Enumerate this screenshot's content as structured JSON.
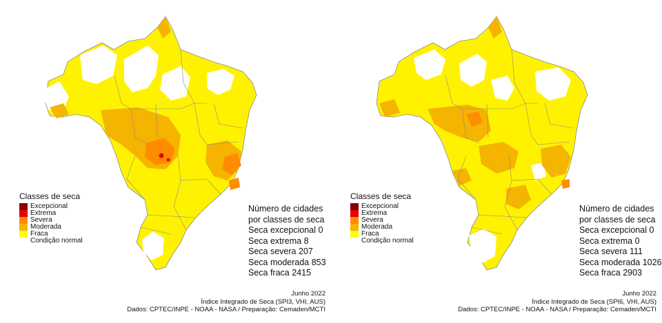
{
  "panels": [
    {
      "legend": {
        "title": "Classes de seca",
        "items": [
          {
            "label": "Excepcional",
            "color": "#8b0000"
          },
          {
            "label": "Extrema",
            "color": "#e60000"
          },
          {
            "label": "Severa",
            "color": "#ff8c00"
          },
          {
            "label": "Moderada",
            "color": "#f5b400"
          },
          {
            "label": "Fraca",
            "color": "#ffff00"
          },
          {
            "label": "Condição normal",
            "color": "#ffffff"
          }
        ]
      },
      "stats": {
        "title_line1": "Número de cidades",
        "title_line2": "por classes de seca",
        "excepcional": "Seca excepcional 0",
        "extrema": "Seca extrema  8",
        "severa": "Seca severa  207",
        "moderada": "Seca moderada 853",
        "fraca": "Seca fraca  2415"
      },
      "credits": {
        "date": "Junho 2022",
        "index": "Índice Integrado de Seca (SPI3, VHI, AUS)",
        "source": "Dados: CPTEC/INPE - NOAA - NASA / Preparação: Cemaden/MCTI"
      }
    },
    {
      "legend": {
        "title": "Classes de seca",
        "items": [
          {
            "label": "Excepcional",
            "color": "#8b0000"
          },
          {
            "label": "Extrema",
            "color": "#e60000"
          },
          {
            "label": "Severa",
            "color": "#ff8c00"
          },
          {
            "label": "Moderada",
            "color": "#f5b400"
          },
          {
            "label": "Fraca",
            "color": "#ffff00"
          },
          {
            "label": "Condição normal",
            "color": "#ffffff"
          }
        ]
      },
      "stats": {
        "title_line1": "Número de cidades",
        "title_line2": "por classes de seca",
        "excepcional": "Seca excepcional 0",
        "extrema": "Seca extrema  0",
        "severa": "Seca severa  111",
        "moderada": "Seca moderada 1026",
        "fraca": "Seca fraca  2903"
      },
      "credits": {
        "date": "Junho 2022",
        "index": "Índice Integrado de Seca (SPI6, VHI, AUS)",
        "source": "Dados: CPTEC/INPE - NOAA - NASA / Preparação: Cemaden/MCTI"
      }
    }
  ]
}
